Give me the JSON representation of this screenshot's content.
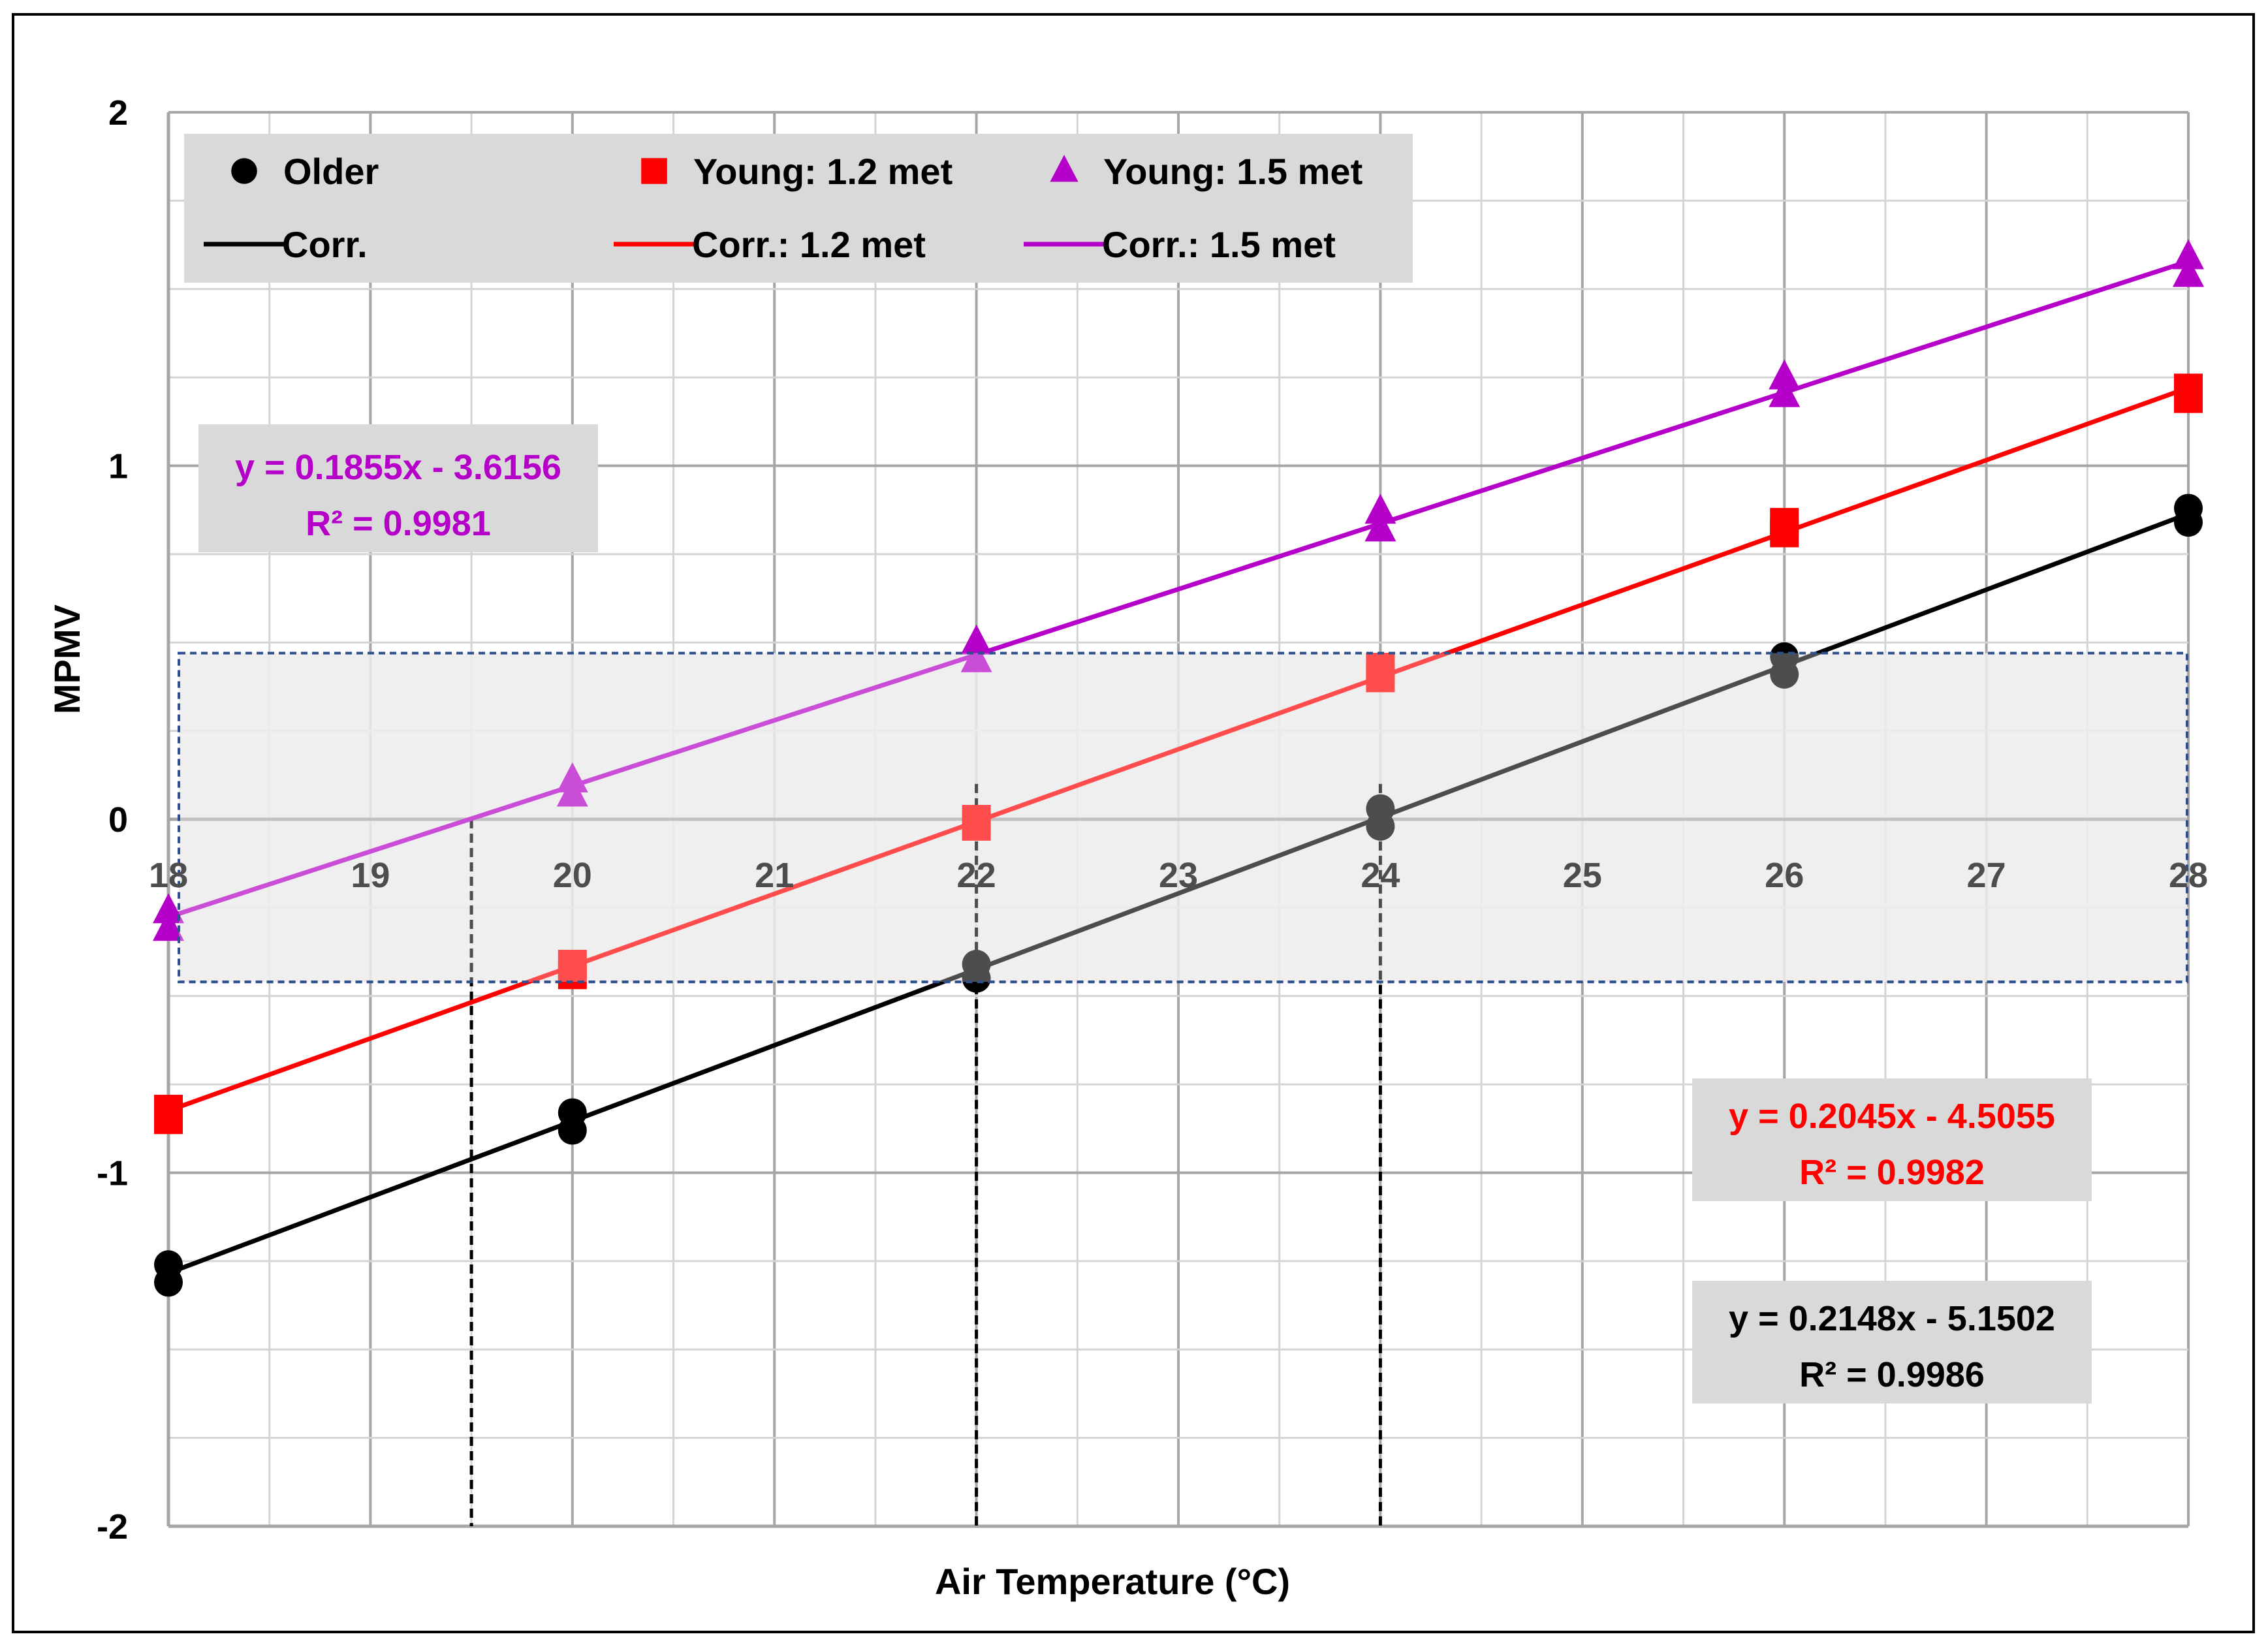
{
  "chart_data": {
    "type": "scatter",
    "xlabel": "Air Temperature (°C)",
    "ylabel": "MPMV",
    "xlim": [
      18,
      28
    ],
    "ylim": [
      -2,
      2
    ],
    "x_ticks": [
      18,
      19,
      20,
      21,
      22,
      23,
      24,
      25,
      26,
      27,
      28
    ],
    "y_ticks": [
      2,
      1,
      0,
      -1,
      -2
    ],
    "y_tick_labels": [
      "2",
      "1",
      "0",
      "-1",
      "-2"
    ],
    "grid": true,
    "x_axis_crosses_at_y": 0,
    "legend_placement": "top-left",
    "legend": [
      {
        "label": "Older",
        "marker": "circle",
        "color": "#000000"
      },
      {
        "label": "Young: 1.2 met",
        "marker": "square",
        "color": "#ff0000"
      },
      {
        "label": "Young: 1.5 met",
        "marker": "triangle",
        "color": "#b400c8"
      },
      {
        "label": "Corr.",
        "marker": "line",
        "color": "#000000"
      },
      {
        "label": "Corr.: 1.2 met",
        "marker": "line",
        "color": "#ff0000"
      },
      {
        "label": "Corr.: 1.5 met",
        "marker": "line",
        "color": "#b400c8"
      }
    ],
    "series": [
      {
        "name": "Older",
        "marker": "circle",
        "color": "#000000",
        "x": [
          18,
          18,
          20,
          20,
          22,
          22,
          24,
          24,
          26,
          26,
          28,
          28
        ],
        "y": [
          -1.26,
          -1.31,
          -0.83,
          -0.88,
          -0.41,
          -0.45,
          0.03,
          -0.02,
          0.46,
          0.41,
          0.88,
          0.84
        ]
      },
      {
        "name": "Young: 1.2 met",
        "marker": "square",
        "color": "#ff0000",
        "x": [
          18,
          18,
          20,
          20,
          22,
          22,
          24,
          24,
          26,
          26,
          28,
          28
        ],
        "y": [
          -0.82,
          -0.85,
          -0.41,
          -0.44,
          0.0,
          -0.02,
          0.43,
          0.4,
          0.84,
          0.81,
          1.22,
          1.19
        ]
      },
      {
        "name": "Young: 1.5 met",
        "marker": "triangle",
        "color": "#b400c8",
        "x": [
          18,
          18,
          20,
          20,
          22,
          22,
          24,
          24,
          26,
          26,
          28,
          28
        ],
        "y": [
          -0.26,
          -0.31,
          0.11,
          0.07,
          0.5,
          0.45,
          0.87,
          0.82,
          1.25,
          1.2,
          1.59,
          1.54
        ]
      }
    ],
    "trendlines": [
      {
        "name": "Corr.",
        "color": "#000000",
        "slope": 0.2148,
        "intercept": -5.1502,
        "x_range": [
          18,
          28
        ],
        "equation": "y = 0.2148x - 5.1502",
        "r2": "R² = 0.9986"
      },
      {
        "name": "Corr.: 1.2 met",
        "color": "#ff0000",
        "slope": 0.2045,
        "intercept": -4.5055,
        "x_range": [
          18,
          28
        ],
        "equation": "y = 0.2045x - 4.5055",
        "r2": "R² = 0.9982"
      },
      {
        "name": "Corr.: 1.5 met",
        "color": "#b400c8",
        "slope": 0.1855,
        "intercept": -3.6156,
        "x_range": [
          18,
          28
        ],
        "equation": "y = 0.1855x - 3.6156",
        "r2": "R² = 0.9981"
      }
    ],
    "comfort_band": {
      "y_range": [
        -0.46,
        0.47
      ],
      "x_range": [
        18,
        28
      ]
    },
    "reference_lines_x": [
      19.5,
      22,
      24
    ]
  }
}
